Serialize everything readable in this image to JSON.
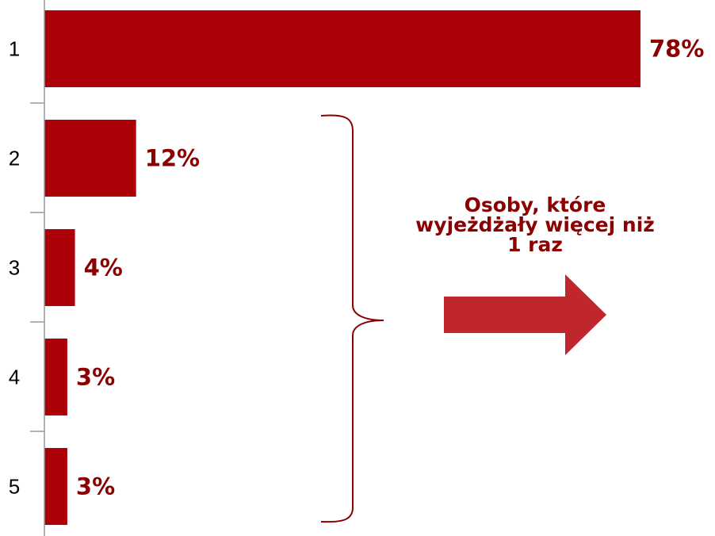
{
  "colors": {
    "bar": "#ae0009",
    "label": "#8b0000",
    "arrow": "#c0272d",
    "axis": "#999999"
  },
  "annotation": {
    "lines": [
      "Osoby, które",
      "wyjeżdżały więcej niż",
      "1 raz"
    ]
  },
  "chart_data": {
    "type": "bar",
    "orientation": "horizontal",
    "categories": [
      "1",
      "2",
      "3",
      "4",
      "5"
    ],
    "values": [
      78,
      12,
      4,
      3,
      3
    ],
    "value_labels": [
      "78%",
      "12%",
      "4%",
      "3%",
      "3%"
    ],
    "xlim": [
      0,
      78
    ],
    "grid": false,
    "legend": "none"
  }
}
